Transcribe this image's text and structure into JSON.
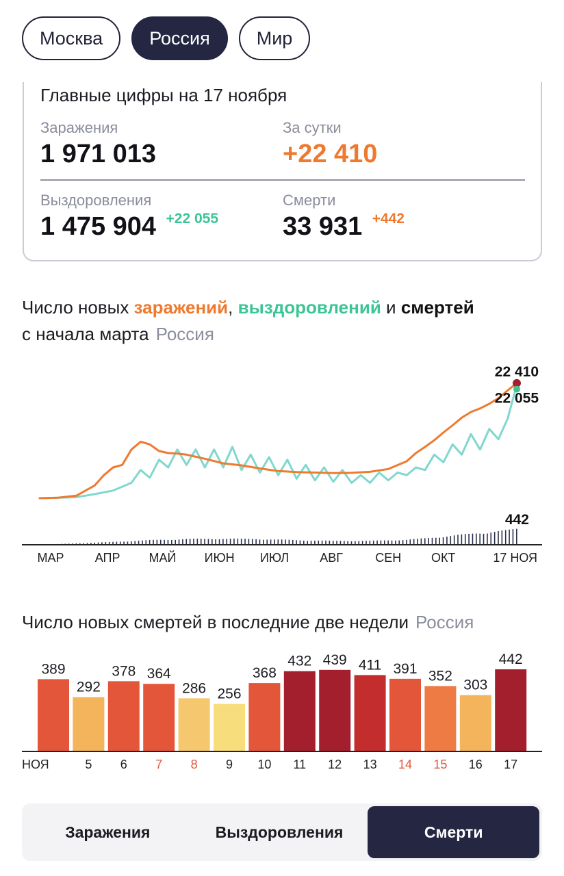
{
  "region_tabs": [
    {
      "label": "Москва",
      "active": false
    },
    {
      "label": "Россия",
      "active": true
    },
    {
      "label": "Мир",
      "active": false
    }
  ],
  "summary": {
    "title": "Главные цифры на 17 ноября",
    "infections_label": "Заражения",
    "infections_value": "1 971 013",
    "daily_label": "За сутки",
    "daily_value": "+22 410",
    "recoveries_label": "Выздоровления",
    "recoveries_value": "1 475 904",
    "recoveries_delta": "+22 055",
    "deaths_label": "Смерти",
    "deaths_value": "33 931",
    "deaths_delta": "+442"
  },
  "chart1": {
    "title_part1": "Число новых ",
    "title_infections": "заражений",
    "title_sep": ", ",
    "title_recoveries": "выздоровлений",
    "title_and": " и ",
    "title_deaths": "смертей",
    "title_line2": "с начала марта",
    "title_region": "Россия"
  },
  "chart2": {
    "title": "Число новых смертей в последние две недели",
    "title_region": "Россия"
  },
  "metric_switch": [
    {
      "label": "Заражения",
      "active": false
    },
    {
      "label": "Выздоровления",
      "active": false
    },
    {
      "label": "Смерти",
      "active": true
    }
  ],
  "colors": {
    "infections": "#ee7a2f",
    "recoveries": "#3cc594",
    "deaths": "#2a2f4a",
    "accent_dark": "#242642"
  },
  "chart_data": [
    {
      "type": "line",
      "xlabel": "",
      "ylabel": "",
      "months": [
        "МАР",
        "АПР",
        "МАЙ",
        "ИЮН",
        "ИЮЛ",
        "АВГ",
        "СЕН",
        "ОКТ",
        "17 НОЯ"
      ],
      "month_days": [
        0,
        31,
        61,
        92,
        122,
        153,
        184,
        214,
        260
      ],
      "ylim": [
        0,
        24000
      ],
      "deaths_ylim": [
        0,
        5000
      ],
      "series": [
        {
          "name": "заражений",
          "x": [
            0,
            10,
            20,
            25,
            30,
            35,
            40,
            45,
            50,
            55,
            60,
            65,
            70,
            75,
            80,
            90,
            100,
            110,
            120,
            130,
            140,
            150,
            160,
            170,
            180,
            190,
            200,
            205,
            210,
            215,
            220,
            225,
            230,
            235,
            240,
            245,
            250,
            255,
            260
          ],
          "y": [
            0,
            100,
            500,
            1500,
            2500,
            4500,
            6000,
            6500,
            9500,
            11000,
            10500,
            9200,
            8800,
            8700,
            8500,
            7700,
            6800,
            6400,
            5800,
            5300,
            5100,
            5000,
            4900,
            4950,
            5150,
            5700,
            7200,
            8800,
            10000,
            11300,
            12800,
            14200,
            15700,
            16800,
            17500,
            18400,
            19500,
            21000,
            22410
          ],
          "end_label": "22 410"
        },
        {
          "name": "выздоровлений",
          "x": [
            0,
            20,
            30,
            40,
            50,
            55,
            60,
            65,
            70,
            75,
            80,
            85,
            90,
            95,
            100,
            105,
            110,
            115,
            120,
            125,
            130,
            135,
            140,
            145,
            150,
            155,
            160,
            165,
            170,
            175,
            180,
            185,
            190,
            195,
            200,
            205,
            210,
            215,
            220,
            225,
            230,
            235,
            240,
            245,
            250,
            255,
            260
          ],
          "y": [
            0,
            200,
            800,
            1500,
            3000,
            5500,
            4000,
            7500,
            6000,
            9500,
            6500,
            9500,
            6000,
            9500,
            6000,
            10000,
            5500,
            8500,
            5000,
            8000,
            4500,
            7500,
            3800,
            6500,
            3500,
            6000,
            3200,
            5500,
            3000,
            4500,
            3000,
            5000,
            3500,
            5000,
            4500,
            6000,
            5500,
            8500,
            7000,
            10500,
            8500,
            12500,
            9500,
            13500,
            11500,
            15500,
            22055
          ],
          "end_label": "22 055"
        },
        {
          "name": "смертей",
          "x": [
            0,
            20,
            40,
            60,
            80,
            100,
            120,
            140,
            160,
            180,
            200,
            210,
            220,
            230,
            240,
            250,
            255,
            260
          ],
          "y": [
            0,
            40,
            80,
            130,
            160,
            170,
            160,
            130,
            110,
            110,
            140,
            180,
            230,
            280,
            330,
            380,
            400,
            442
          ],
          "end_label": "442"
        }
      ]
    },
    {
      "type": "bar",
      "title": "Число новых смертей в последние две недели",
      "categories": [
        "НОЯ",
        "5",
        "6",
        "7",
        "8",
        "9",
        "10",
        "11",
        "12",
        "13",
        "14",
        "15",
        "16",
        "17"
      ],
      "highlight_categories": [
        "7",
        "8",
        "14",
        "15"
      ],
      "values": [
        389,
        292,
        378,
        364,
        286,
        256,
        368,
        432,
        439,
        411,
        391,
        352,
        303,
        442
      ],
      "ylim": [
        0,
        442
      ],
      "bar_colors": [
        "#e4563a",
        "#f4b45c",
        "#e4563a",
        "#e4563a",
        "#f5c86f",
        "#f8dd7c",
        "#e4563a",
        "#a31f2e",
        "#a31f2e",
        "#c42d2d",
        "#e4563a",
        "#ee7a44",
        "#f4b45c",
        "#a31f2e"
      ]
    }
  ]
}
